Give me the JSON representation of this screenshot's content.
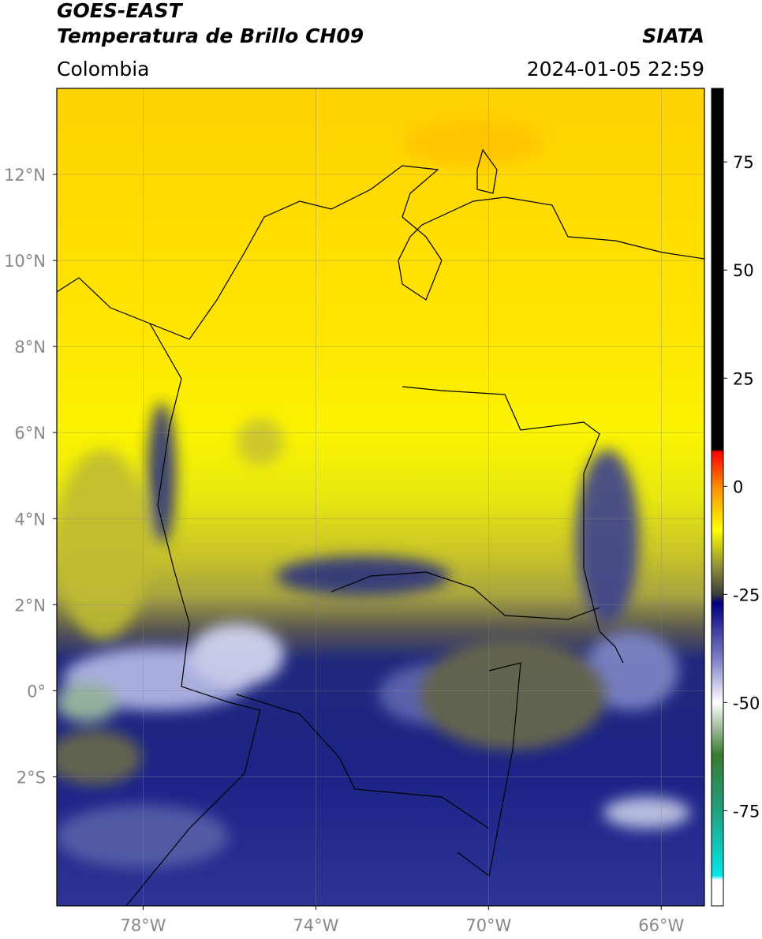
{
  "header": {
    "satellite": "GOES-EAST",
    "product": "Temperatura de Brillo CH09",
    "source": "SIATA",
    "region": "Colombia",
    "datetime": "2024-01-05 22:59"
  },
  "map": {
    "xlim": [
      -80,
      -65
    ],
    "ylim": [
      -5,
      14
    ],
    "xticks": [
      {
        "value": -78,
        "label": "78°W"
      },
      {
        "value": -74,
        "label": "74°W"
      },
      {
        "value": -70,
        "label": "70°W"
      },
      {
        "value": -66,
        "label": "66°W"
      }
    ],
    "yticks": [
      {
        "value": 12,
        "label": "12°N"
      },
      {
        "value": 10,
        "label": "10°N"
      },
      {
        "value": 8,
        "label": "8°N"
      },
      {
        "value": 6,
        "label": "6°N"
      },
      {
        "value": 4,
        "label": "4°N"
      },
      {
        "value": 2,
        "label": "2°N"
      },
      {
        "value": 0,
        "label": "0°"
      },
      {
        "value": -2,
        "label": "2°S"
      }
    ],
    "grid": true
  },
  "colorbar": {
    "lim": [
      -97,
      92
    ],
    "ticks": [
      75,
      50,
      25,
      0,
      -25,
      -50,
      -75
    ],
    "stops": [
      {
        "value": 92,
        "color": "#000000"
      },
      {
        "value": 8.5,
        "color": "#000000"
      },
      {
        "value": 8,
        "color": "#ff0000"
      },
      {
        "value": 0,
        "color": "#ff8c00"
      },
      {
        "value": -10,
        "color": "#ffff00"
      },
      {
        "value": -19,
        "color": "#8a8a3a"
      },
      {
        "value": -25,
        "color": "#3c3c3c"
      },
      {
        "value": -27,
        "color": "#000080"
      },
      {
        "value": -40,
        "color": "#8080c8"
      },
      {
        "value": -50,
        "color": "#ffffff"
      },
      {
        "value": -62,
        "color": "#3a7a30"
      },
      {
        "value": -75,
        "color": "#20a080"
      },
      {
        "value": -90,
        "color": "#00e8e8"
      },
      {
        "value": -91,
        "color": "#ffffff"
      },
      {
        "value": -97,
        "color": "#ffffff"
      }
    ]
  }
}
